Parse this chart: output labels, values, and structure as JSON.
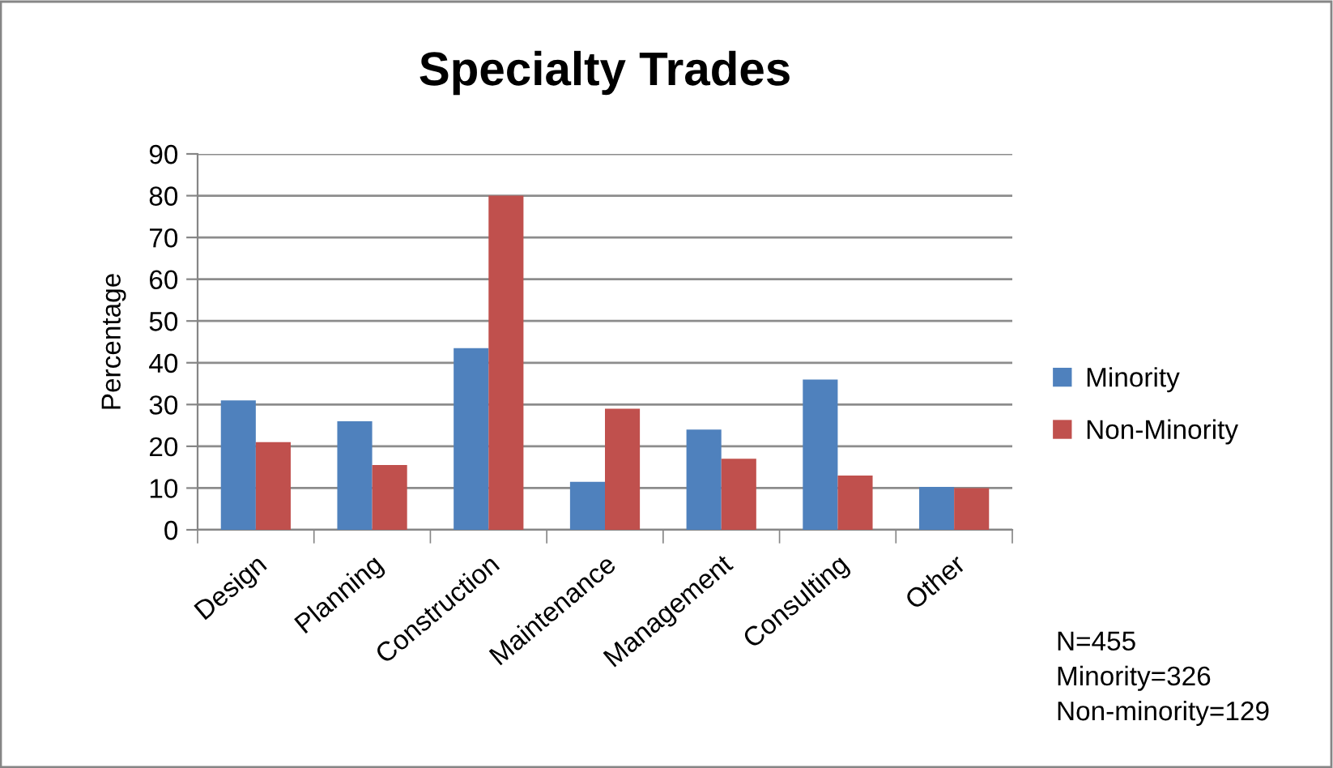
{
  "chart_data": {
    "type": "bar",
    "title": "Specialty Trades",
    "ylabel": "Percentage",
    "categories": [
      "Design",
      "Planning",
      "Construction",
      "Maintenance",
      "Management",
      "Consulting",
      "Other"
    ],
    "series": [
      {
        "name": "Minority",
        "color": "#4f81bd",
        "values": [
          31,
          26,
          43.5,
          11.5,
          24,
          36,
          10.3
        ]
      },
      {
        "name": "Non-Minority",
        "color": "#c0504d",
        "values": [
          21,
          15.5,
          80,
          29,
          17,
          13,
          10
        ]
      }
    ],
    "ylim": [
      0,
      90
    ],
    "yticks": [
      0,
      10,
      20,
      30,
      40,
      50,
      60,
      70,
      80,
      90
    ],
    "grid": "y",
    "legend": "right",
    "annotations": [
      "N=455\nMinority=326\nNon-minority=129"
    ]
  }
}
